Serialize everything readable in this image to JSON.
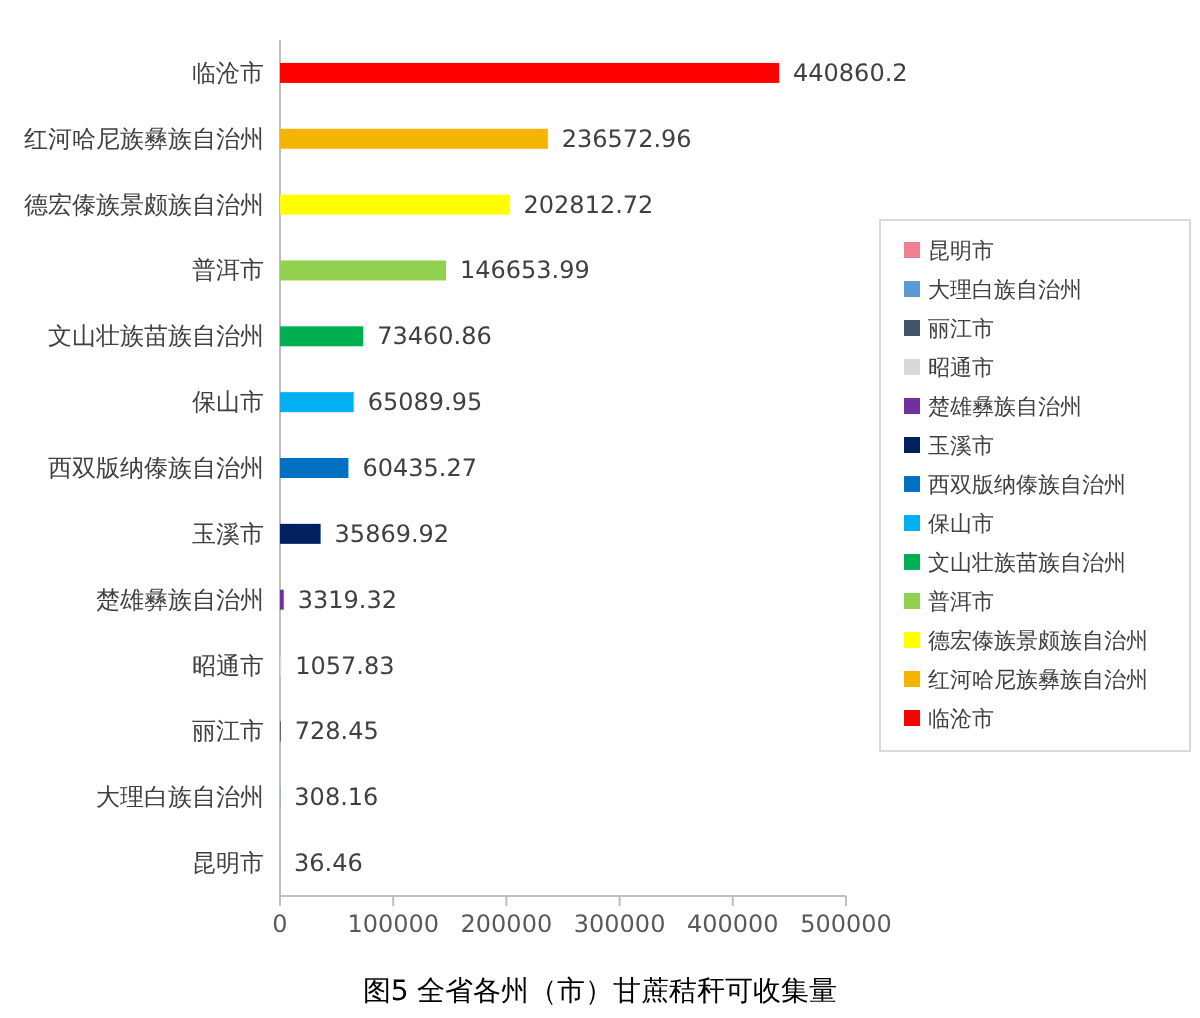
{
  "chart_data": {
    "type": "bar",
    "orientation": "horizontal",
    "title": "图5 全省各州（市）甘蔗秸秆可收集量",
    "categories": [
      "临沧市",
      "红河哈尼族彝族自治州",
      "德宏傣族景颇族自治州",
      "普洱市",
      "文山壮族苗族自治州",
      "保山市",
      "西双版纳傣族自治州",
      "玉溪市",
      "楚雄彝族自治州",
      "昭通市",
      "丽江市",
      "大理白族自治州",
      "昆明市"
    ],
    "series": [
      {
        "name": "昆明市",
        "color": "#f08090",
        "values": [
          null,
          null,
          null,
          null,
          null,
          null,
          null,
          null,
          null,
          null,
          null,
          null,
          36.46
        ]
      },
      {
        "name": "大理白族自治州",
        "color": "#5b9bd5",
        "values": [
          null,
          null,
          null,
          null,
          null,
          null,
          null,
          null,
          null,
          null,
          null,
          308.16,
          null
        ]
      },
      {
        "name": "丽江市",
        "color": "#44546a",
        "values": [
          null,
          null,
          null,
          null,
          null,
          null,
          null,
          null,
          null,
          null,
          728.45,
          null,
          null
        ]
      },
      {
        "name": "昭通市",
        "color": "#d9d9d9",
        "values": [
          null,
          null,
          null,
          null,
          null,
          null,
          null,
          null,
          null,
          1057.83,
          null,
          null,
          null
        ]
      },
      {
        "name": "楚雄彝族自治州",
        "color": "#7030a0",
        "values": [
          null,
          null,
          null,
          null,
          null,
          null,
          null,
          null,
          3319.32,
          null,
          null,
          null,
          null
        ]
      },
      {
        "name": "玉溪市",
        "color": "#002060",
        "values": [
          null,
          null,
          null,
          null,
          null,
          null,
          null,
          35869.92,
          null,
          null,
          null,
          null,
          null
        ]
      },
      {
        "name": "西双版纳傣族自治州",
        "color": "#0070c0",
        "values": [
          null,
          null,
          null,
          null,
          null,
          null,
          60435.27,
          null,
          null,
          null,
          null,
          null,
          null
        ]
      },
      {
        "name": "保山市",
        "color": "#00b0f0",
        "values": [
          null,
          null,
          null,
          null,
          null,
          65089.95,
          null,
          null,
          null,
          null,
          null,
          null,
          null
        ]
      },
      {
        "name": "文山壮族苗族自治州",
        "color": "#00b050",
        "values": [
          null,
          null,
          null,
          null,
          73460.86,
          null,
          null,
          null,
          null,
          null,
          null,
          null,
          null
        ]
      },
      {
        "name": "普洱市",
        "color": "#92d050",
        "values": [
          null,
          null,
          null,
          146653.99,
          null,
          null,
          null,
          null,
          null,
          null,
          null,
          null,
          null
        ]
      },
      {
        "name": "德宏傣族景颇族自治州",
        "color": "#ffff00",
        "values": [
          null,
          null,
          202812.72,
          null,
          null,
          null,
          null,
          null,
          null,
          null,
          null,
          null,
          null
        ]
      },
      {
        "name": "红河哈尼族彝族自治州",
        "color": "#f5b400",
        "values": [
          null,
          236572.96,
          null,
          null,
          null,
          null,
          null,
          null,
          null,
          null,
          null,
          null,
          null
        ]
      },
      {
        "name": "临沧市",
        "color": "#ff0000",
        "values": [
          440860.2,
          null,
          null,
          null,
          null,
          null,
          null,
          null,
          null,
          null,
          null,
          null,
          null
        ]
      }
    ],
    "xlim": [
      0,
      500000
    ],
    "xticks": [
      0,
      100000,
      200000,
      300000,
      400000,
      500000
    ],
    "data_labels": true,
    "legend": "right",
    "grid": false
  }
}
